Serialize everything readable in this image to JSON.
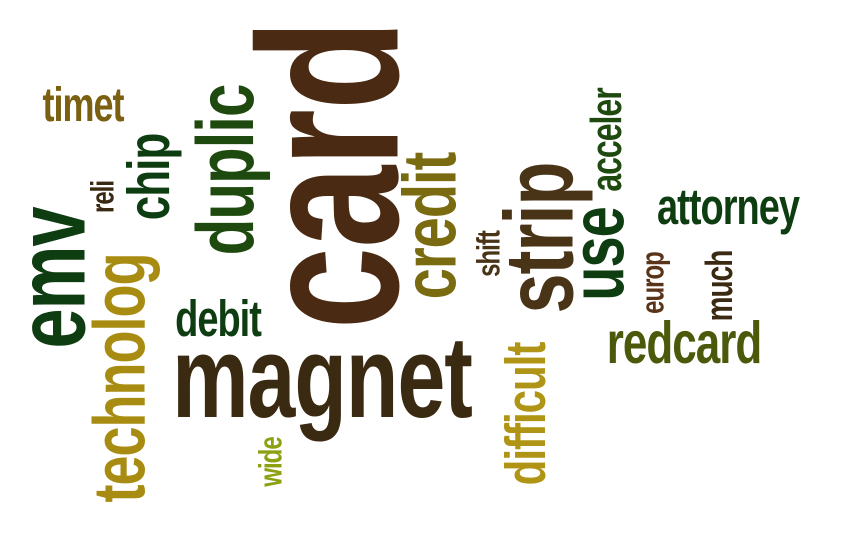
{
  "words": [
    {
      "text": "card",
      "color": "#4a2a12"
    },
    {
      "text": "magnet",
      "color": "#3b2a12"
    },
    {
      "text": "strip",
      "color": "#4a3418"
    },
    {
      "text": "use",
      "color": "#0f3d12"
    },
    {
      "text": "emv",
      "color": "#0f3d12"
    },
    {
      "text": "duplic",
      "color": "#1f4a0f"
    },
    {
      "text": "credit",
      "color": "#7a6a10"
    },
    {
      "text": "technolog",
      "color": "#a88c12"
    },
    {
      "text": "redcard",
      "color": "#4a5a0a"
    },
    {
      "text": "chip",
      "color": "#0f3d12"
    },
    {
      "text": "difficult",
      "color": "#b09415"
    },
    {
      "text": "attorney",
      "color": "#0f3d12"
    },
    {
      "text": "debit",
      "color": "#0f3d12"
    },
    {
      "text": "timet",
      "color": "#7a6010"
    },
    {
      "text": "acceler",
      "color": "#1f4a0f"
    },
    {
      "text": "much",
      "color": "#3b2a12"
    },
    {
      "text": "europ",
      "color": "#5a3418"
    },
    {
      "text": "shift",
      "color": "#4a3418"
    },
    {
      "text": "reli",
      "color": "#3b2a12"
    },
    {
      "text": "wide",
      "color": "#8ca012"
    }
  ]
}
